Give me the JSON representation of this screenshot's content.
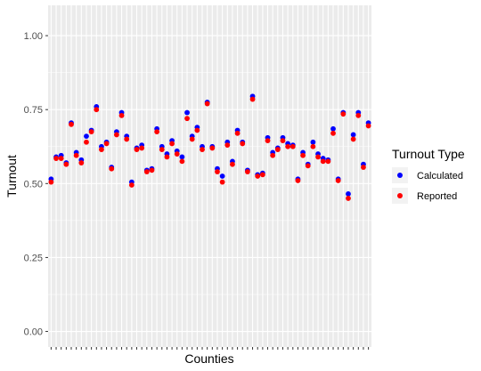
{
  "chart_data": {
    "type": "scatter",
    "xlabel": "Counties",
    "ylabel": "Turnout",
    "ylim": [
      0,
      1.05
    ],
    "y_ticks": [
      "0.00",
      "0.25",
      "0.50",
      "0.75",
      "1.00"
    ],
    "grid": true,
    "legend": {
      "title": "Turnout Type",
      "placement": "right",
      "entries": [
        {
          "label": "Calculated",
          "color": "#0000ff"
        },
        {
          "label": "Reported",
          "color": "#ff0000"
        }
      ]
    },
    "series": [
      {
        "name": "Calculated",
        "color": "#0000ff",
        "values": [
          0.515,
          0.59,
          0.595,
          0.57,
          0.705,
          0.605,
          0.58,
          0.66,
          0.68,
          0.76,
          0.625,
          0.64,
          0.555,
          0.675,
          0.74,
          0.66,
          0.505,
          0.62,
          0.63,
          0.545,
          0.55,
          0.685,
          0.625,
          0.6,
          0.645,
          0.61,
          0.59,
          0.74,
          0.66,
          0.69,
          0.625,
          0.775,
          0.625,
          0.55,
          0.525,
          0.64,
          0.575,
          0.68,
          0.64,
          0.545,
          0.795,
          0.53,
          0.535,
          0.655,
          0.605,
          0.62,
          0.655,
          0.635,
          0.63,
          0.515,
          0.605,
          0.565,
          0.64,
          0.6,
          0.585,
          0.58,
          0.685,
          0.515,
          0.74,
          0.465,
          0.665,
          0.74,
          0.565,
          0.705
        ]
      },
      {
        "name": "Reported",
        "color": "#ff0000",
        "values": [
          0.505,
          0.585,
          0.585,
          0.565,
          0.7,
          0.595,
          0.57,
          0.64,
          0.675,
          0.75,
          0.615,
          0.635,
          0.55,
          0.665,
          0.73,
          0.65,
          0.495,
          0.615,
          0.62,
          0.54,
          0.545,
          0.675,
          0.615,
          0.59,
          0.635,
          0.6,
          0.575,
          0.72,
          0.65,
          0.68,
          0.615,
          0.77,
          0.62,
          0.54,
          0.505,
          0.63,
          0.565,
          0.67,
          0.635,
          0.54,
          0.785,
          0.525,
          0.53,
          0.645,
          0.595,
          0.615,
          0.645,
          0.625,
          0.625,
          0.51,
          0.595,
          0.56,
          0.625,
          0.59,
          0.575,
          0.575,
          0.67,
          0.51,
          0.735,
          0.45,
          0.65,
          0.73,
          0.555,
          0.695
        ]
      }
    ]
  }
}
